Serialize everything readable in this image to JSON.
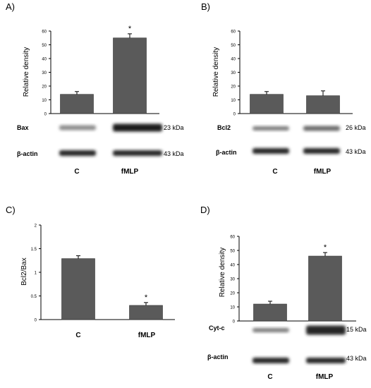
{
  "colors": {
    "bar": "#5a5a5a",
    "axis": "#000000",
    "band": "#1a1a1a"
  },
  "chart_data": [
    {
      "panel": "A)",
      "type": "bar",
      "categories": [
        "C",
        "fMLP"
      ],
      "values": [
        14,
        55
      ],
      "errors": [
        2,
        3
      ],
      "significance": [
        "",
        "*"
      ],
      "ylabel": "Relative density",
      "ylim": [
        0,
        60
      ],
      "yticks": [
        "0",
        "10",
        "20",
        "30",
        "40",
        "50",
        "60"
      ],
      "blots": [
        {
          "label": "Bax",
          "kda": "23 kDa",
          "intensity": [
            0.35,
            1.0
          ]
        },
        {
          "label": "β-actin",
          "kda": "43 kDa",
          "intensity": [
            0.95,
            0.95
          ]
        }
      ]
    },
    {
      "panel": "B)",
      "type": "bar",
      "categories": [
        "C",
        "fMLP"
      ],
      "values": [
        14,
        13
      ],
      "errors": [
        2,
        3.5
      ],
      "significance": [
        "",
        ""
      ],
      "ylabel": "Relative density",
      "ylim": [
        0,
        60
      ],
      "yticks": [
        "0",
        "10",
        "20",
        "30",
        "40",
        "50",
        "60"
      ],
      "blots": [
        {
          "label": "Bcl2",
          "kda": "26 kDa",
          "intensity": [
            0.45,
            0.55
          ]
        },
        {
          "label": "β-actin",
          "kda": "43 kDa",
          "intensity": [
            0.95,
            0.95
          ]
        }
      ]
    },
    {
      "panel": "C)",
      "type": "bar",
      "categories": [
        "C",
        "fMLP"
      ],
      "values": [
        1.29,
        0.3
      ],
      "errors": [
        0.06,
        0.06
      ],
      "significance": [
        "",
        "*"
      ],
      "ylabel": "Bcl2/Bax",
      "ylim": [
        0,
        2
      ],
      "yticks": [
        "0",
        "0.5",
        "1",
        "1.5",
        "2"
      ],
      "blots": []
    },
    {
      "panel": "D)",
      "type": "bar",
      "categories": [
        "C",
        "fMLP"
      ],
      "values": [
        12,
        46
      ],
      "errors": [
        2,
        2.5
      ],
      "significance": [
        "",
        "*"
      ],
      "ylabel": "Relative density",
      "ylim": [
        0,
        60
      ],
      "yticks": [
        "0",
        "10",
        "20",
        "30",
        "40",
        "50",
        "60"
      ],
      "blots": [
        {
          "label": "Cyt-c",
          "kda": "15 kDa",
          "intensity": [
            0.45,
            0.95
          ]
        },
        {
          "label": "β-actin",
          "kda": "43 kDa",
          "intensity": [
            0.95,
            0.95
          ]
        }
      ]
    }
  ]
}
